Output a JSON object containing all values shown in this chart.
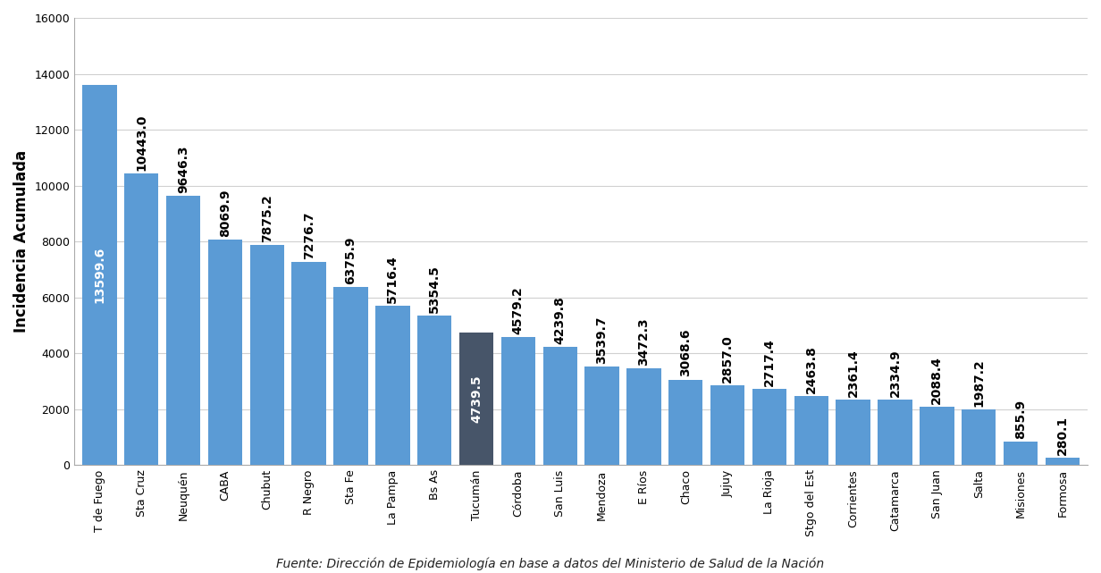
{
  "categories": [
    "T de Fuego",
    "Sta Cruz",
    "Neuquén",
    "CABA",
    "Chubut",
    "R Negro",
    "Sta Fe",
    "La Pampa",
    "Bs As",
    "Tucumán",
    "Córdoba",
    "San Luis",
    "Mendoza",
    "E Ríos",
    "Chaco",
    "Jujuy",
    "La Rioja",
    "Stgo del Est",
    "Corrientes",
    "Catamarca",
    "San Juan",
    "Salta",
    "Misiones",
    "Formosa"
  ],
  "values": [
    13599.6,
    10443.0,
    9646.3,
    8069.9,
    7875.2,
    7276.7,
    6375.9,
    5716.4,
    5354.5,
    4739.5,
    4579.2,
    4239.8,
    3539.7,
    3472.3,
    3068.6,
    2857.0,
    2717.4,
    2463.8,
    2361.4,
    2334.9,
    2088.4,
    1987.2,
    855.9,
    280.1
  ],
  "bar_color_default": "#5b9bd5",
  "bar_color_highlight": "#475569",
  "highlight_index": 9,
  "ylabel": "Incidencia Acumulada",
  "ylim": [
    0,
    16000
  ],
  "yticks": [
    0,
    2000,
    4000,
    6000,
    8000,
    10000,
    12000,
    14000,
    16000
  ],
  "footnote": "Fuente: Dirección de Epidemiología en base a datos del Ministerio de Salud de la Nación",
  "background_color": "#ffffff",
  "grid_color": "#d0d0d0",
  "label_color_outside": "#000000",
  "label_color_inside": "#ffffff",
  "label_fontsize": 10,
  "ylabel_fontsize": 12,
  "tick_fontsize": 9,
  "footnote_fontsize": 10,
  "bar_width": 0.82
}
